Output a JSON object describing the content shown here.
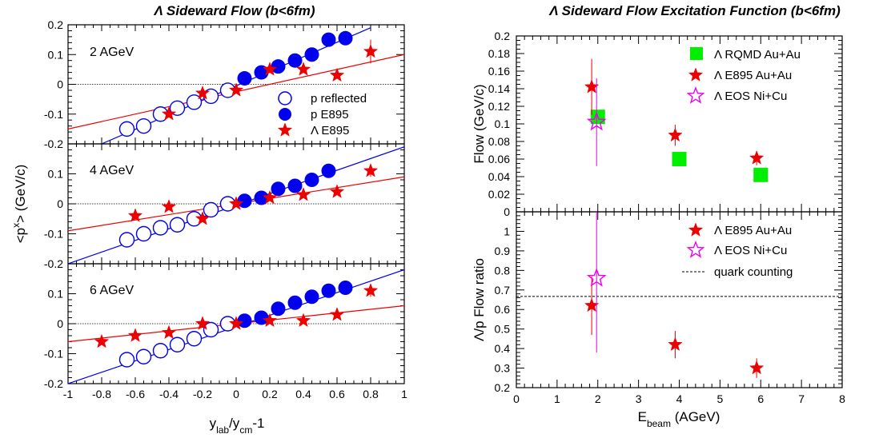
{
  "chart_data": [
    {
      "type": "scatter",
      "title": "Λ Sideward Flow (b<6fm)",
      "xlabel": "ylab/ycm-1",
      "ylabel": "<px> (GeV/c)",
      "xlim": [
        -1,
        1
      ],
      "xticks": [
        "-1",
        "-0.8",
        "-0.6",
        "-0.4",
        "-0.2",
        "0",
        "0.2",
        "0.4",
        "0.6",
        "0.8",
        "1"
      ],
      "legend": [
        "p reflected",
        "p E895",
        "Λ E895"
      ],
      "legend_position": "inside panel 1, right",
      "colors": {
        "proton": "#0000ee",
        "lambda": "#ee0000"
      },
      "panels": [
        {
          "label": "2 AGeV",
          "ylim": [
            -0.2,
            0.2
          ],
          "yticks": [
            "-0.2",
            "-0.1",
            "0",
            "0.1",
            "0.2"
          ],
          "series": [
            {
              "name": "p reflected",
              "x": [
                -0.65,
                -0.55,
                -0.45,
                -0.35,
                -0.25,
                -0.15,
                -0.05
              ],
              "y": [
                -0.15,
                -0.14,
                -0.1,
                -0.08,
                -0.06,
                -0.04,
                -0.02
              ]
            },
            {
              "name": "p E895",
              "x": [
                0.05,
                0.15,
                0.25,
                0.35,
                0.45,
                0.55,
                0.65
              ],
              "y": [
                0.02,
                0.04,
                0.06,
                0.08,
                0.1,
                0.15,
                0.155
              ]
            },
            {
              "name": "Λ E895",
              "x": [
                -0.4,
                -0.2,
                0,
                0.2,
                0.4,
                0.6,
                0.8
              ],
              "y": [
                -0.1,
                -0.03,
                -0.02,
                0.05,
                0.05,
                0.03,
                0.11
              ],
              "yerr": [
                0.01,
                0.01,
                0.01,
                0.01,
                0.01,
                0.01,
                0.04
              ]
            }
          ],
          "fit_lines": [
            {
              "color": "#0000ee",
              "x": [
                -0.8,
                0.8
              ],
              "y": [
                -0.2,
                0.19
              ]
            },
            {
              "color": "#ee0000",
              "x": [
                -1,
                1
              ],
              "y": [
                -0.15,
                0.1
              ]
            }
          ]
        },
        {
          "label": "4 AGeV",
          "ylim": [
            -0.2,
            0.2
          ],
          "yticks": [
            "-0.2",
            "-0.1",
            "0",
            "0.1"
          ],
          "series": [
            {
              "name": "p reflected",
              "x": [
                -0.65,
                -0.55,
                -0.45,
                -0.35,
                -0.25,
                -0.15,
                -0.05
              ],
              "y": [
                -0.12,
                -0.1,
                -0.08,
                -0.07,
                -0.05,
                -0.02,
                0
              ]
            },
            {
              "name": "p E895",
              "x": [
                0.05,
                0.15,
                0.25,
                0.35,
                0.45,
                0.55
              ],
              "y": [
                0.01,
                0.02,
                0.05,
                0.06,
                0.08,
                0.11
              ]
            },
            {
              "name": "Λ E895",
              "x": [
                -0.6,
                -0.4,
                -0.2,
                0,
                0.2,
                0.4,
                0.6,
                0.8
              ],
              "y": [
                -0.04,
                -0.01,
                -0.05,
                0,
                0.02,
                0.03,
                0.04,
                0.11
              ],
              "yerr": [
                0.01,
                0.01,
                0.01,
                0.01,
                0.01,
                0.01,
                0.01,
                0.02
              ]
            }
          ],
          "fit_lines": [
            {
              "color": "#0000ee",
              "x": [
                -1,
                1
              ],
              "y": [
                -0.2,
                0.19
              ]
            },
            {
              "color": "#ee0000",
              "x": [
                -1,
                1
              ],
              "y": [
                -0.09,
                0.09
              ]
            }
          ]
        },
        {
          "label": "6 AGeV",
          "ylim": [
            -0.2,
            0.2
          ],
          "yticks": [
            "-0.2",
            "-0.1",
            "0",
            "0.1"
          ],
          "series": [
            {
              "name": "p reflected",
              "x": [
                -0.65,
                -0.55,
                -0.45,
                -0.35,
                -0.25,
                -0.15,
                -0.05
              ],
              "y": [
                -0.12,
                -0.11,
                -0.09,
                -0.07,
                -0.05,
                -0.02,
                0
              ]
            },
            {
              "name": "p E895",
              "x": [
                0.05,
                0.15,
                0.25,
                0.35,
                0.45,
                0.55,
                0.65
              ],
              "y": [
                0.01,
                0.02,
                0.05,
                0.07,
                0.09,
                0.11,
                0.12
              ]
            },
            {
              "name": "Λ E895",
              "x": [
                -0.8,
                -0.6,
                -0.4,
                -0.2,
                0,
                0.2,
                0.4,
                0.6,
                0.8
              ],
              "y": [
                -0.06,
                -0.04,
                -0.03,
                0,
                0,
                0.01,
                0.01,
                0.03,
                0.11
              ],
              "yerr": [
                0.01,
                0.01,
                0.01,
                0.01,
                0.01,
                0.01,
                0.01,
                0.01,
                0.02
              ]
            }
          ],
          "fit_lines": [
            {
              "color": "#0000ee",
              "x": [
                -1,
                1
              ],
              "y": [
                -0.2,
                0.18
              ]
            },
            {
              "color": "#ee0000",
              "x": [
                -1,
                1
              ],
              "y": [
                -0.06,
                0.06
              ]
            }
          ]
        }
      ]
    },
    {
      "type": "scatter",
      "title": "Λ Sideward Flow Excitation Function (b<6fm)",
      "xlabel": "Ebeam (AGeV)",
      "xlim": [
        0,
        8
      ],
      "xticks": [
        "0",
        "1",
        "2",
        "3",
        "4",
        "5",
        "6",
        "7",
        "8"
      ],
      "panels": [
        {
          "ylabel": "Flow (GeV/c)",
          "ylim": [
            0,
            0.2
          ],
          "yticks": [
            "0",
            "0.02",
            "0.04",
            "0.06",
            "0.08",
            "0.1",
            "0.12",
            "0.14",
            "0.16",
            "0.18",
            "0.2"
          ],
          "legend": [
            "Λ RQMD Au+Au",
            "Λ E895 Au+Au",
            "Λ EOS Ni+Cu"
          ],
          "legend_position": "top-right",
          "series": [
            {
              "name": "Λ RQMD Au+Au",
              "color": "#00ee00",
              "x": [
                2,
                4,
                6
              ],
              "y": [
                0.108,
                0.06,
                0.042
              ]
            },
            {
              "name": "Λ E895 Au+Au",
              "color": "#ee0000",
              "x": [
                1.85,
                3.9,
                5.9
              ],
              "y": [
                0.142,
                0.087,
                0.061
              ],
              "yerr": [
                0.032,
                0.012,
                0.008
              ]
            },
            {
              "name": "Λ EOS Ni+Cu",
              "color": "#ee00ee",
              "x": [
                1.97
              ],
              "y": [
                0.102
              ],
              "yerr": [
                0.05
              ]
            }
          ]
        },
        {
          "ylabel": "Λ/p Flow ratio",
          "ylim": [
            0.2,
            1.1
          ],
          "yticks": [
            "0.2",
            "0.3",
            "0.4",
            "0.5",
            "0.6",
            "0.7",
            "0.8",
            "0.9",
            "1"
          ],
          "legend": [
            "Λ E895 Au+Au",
            "Λ EOS Ni+Cu",
            "quark counting"
          ],
          "legend_position": "top-right",
          "reference_line": {
            "name": "quark counting",
            "y": 0.667
          },
          "series": [
            {
              "name": "Λ E895 Au+Au",
              "color": "#ee0000",
              "x": [
                1.85,
                3.9,
                5.9
              ],
              "y": [
                0.62,
                0.42,
                0.3
              ],
              "yerr": [
                0.15,
                0.07,
                0.05
              ]
            },
            {
              "name": "Λ EOS Ni+Cu",
              "color": "#ee00ee",
              "x": [
                1.97
              ],
              "y": [
                0.76
              ],
              "yerr": [
                0.38
              ]
            }
          ]
        }
      ]
    }
  ]
}
